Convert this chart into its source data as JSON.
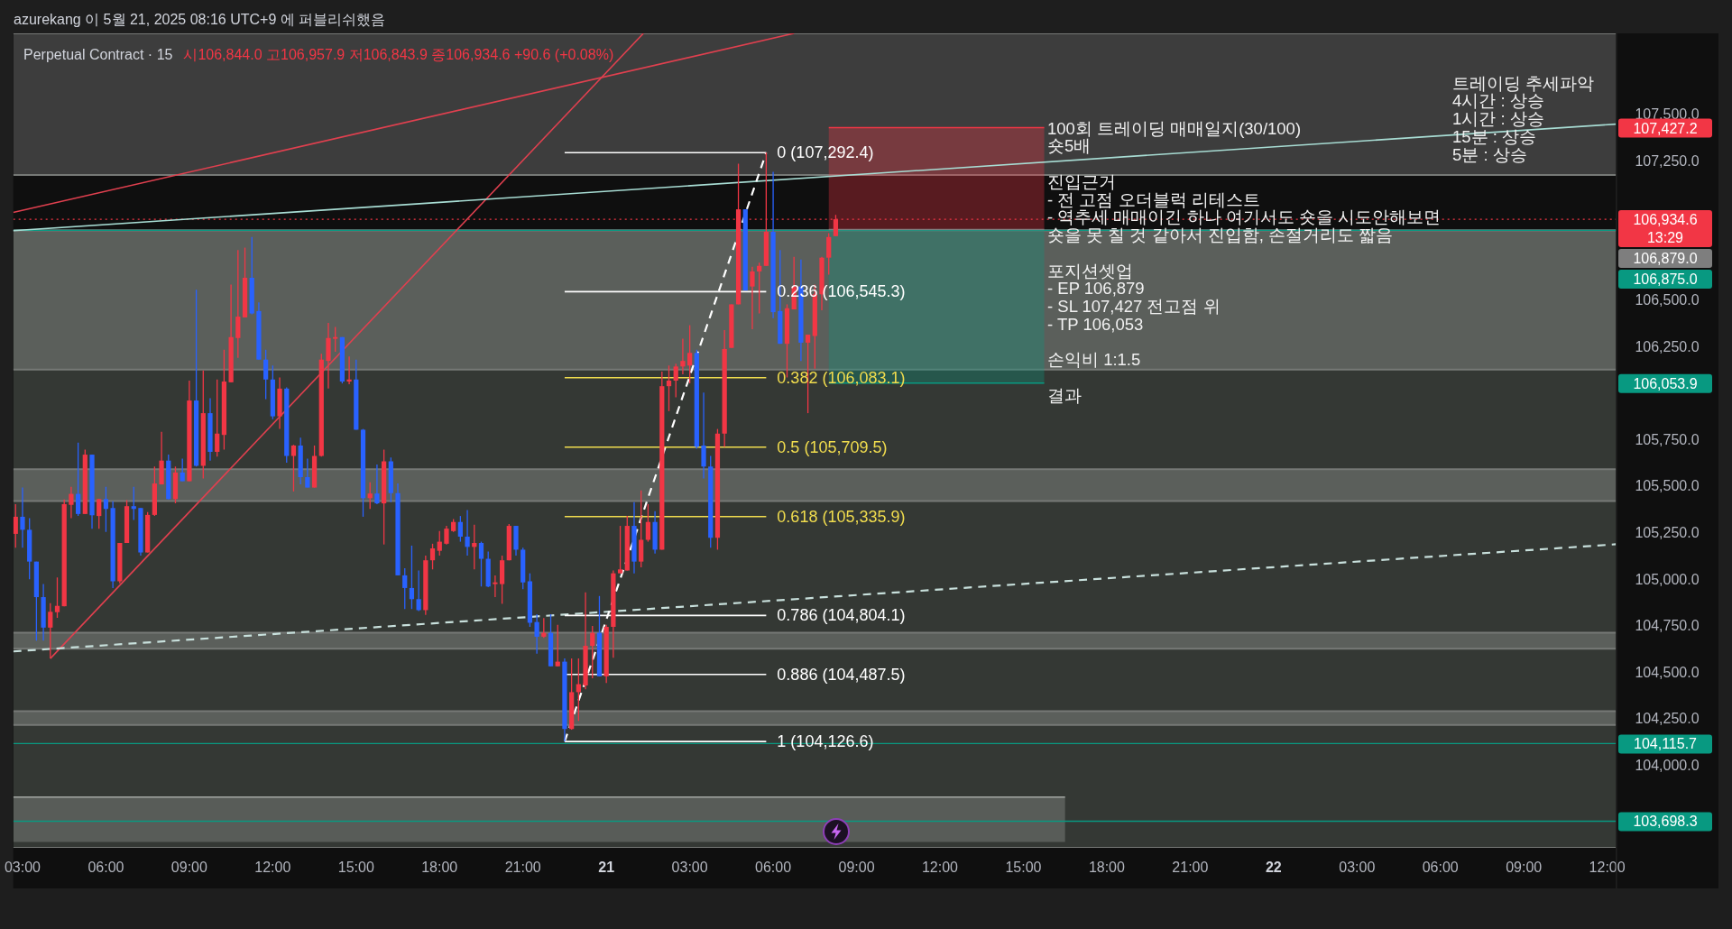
{
  "chart_data": {
    "type": "candlestick",
    "title": "Perpetual Contract · 15",
    "subtitle": "시106,844.0 고106,957.9 저106,843.9 종106,934.6 +90.6 (+0.08%)",
    "annotations": [
      "azurekang 이 5월 21, 2025 08:16 UTC+9 에 퍼블리쉬했음",
      "100회 트레이딩 매매일지(30/100)\n숏5배\n\n진입근거\n- 전 고점 오더블럭 리테스트\n- 역추세 매매이긴 하나 여기서도 숏을 시도안해보면\n숏을 못 칠 것 같아서 진입함, 손절거리도 짧음\n\n포지션셋업\n- EP 106,879\n- SL 107,427 전고점 위\n- TP 106,053\n\n손익비 1:1.5\n\n결과",
      "트레이딩 추세파악\n4시간 : 상승\n1시간 : 상승\n15분 : 상승\n5분 : 상승",
      "107,427.2",
      "106,879.0",
      "106,875.0",
      "106,053.9"
    ],
    "x": [
      "2025-05-20T02:45",
      "2025-05-20T03:00",
      "2025-05-20T03:15",
      "2025-05-20T03:30",
      "2025-05-20T03:45",
      "2025-05-20T04:00",
      "2025-05-20T04:15",
      "2025-05-20T04:30",
      "2025-05-20T04:45",
      "2025-05-20T05:00",
      "2025-05-20T05:15",
      "2025-05-20T05:30",
      "2025-05-20T05:45",
      "2025-05-20T06:00",
      "2025-05-20T06:15",
      "2025-05-20T06:30",
      "2025-05-20T06:45",
      "2025-05-20T07:00",
      "2025-05-20T07:15",
      "2025-05-20T07:30",
      "2025-05-20T07:45",
      "2025-05-20T08:00",
      "2025-05-20T08:15",
      "2025-05-20T08:30",
      "2025-05-20T08:45",
      "2025-05-20T09:00",
      "2025-05-20T09:15",
      "2025-05-20T09:30",
      "2025-05-20T09:45",
      "2025-05-20T10:00",
      "2025-05-20T10:15",
      "2025-05-20T10:30",
      "2025-05-20T10:45",
      "2025-05-20T11:00",
      "2025-05-20T11:15",
      "2025-05-20T11:30",
      "2025-05-20T11:45",
      "2025-05-20T12:00",
      "2025-05-20T12:15",
      "2025-05-20T12:30",
      "2025-05-20T12:45",
      "2025-05-20T13:00",
      "2025-05-20T13:15",
      "2025-05-20T13:30",
      "2025-05-20T13:45",
      "2025-05-20T14:00",
      "2025-05-20T14:15",
      "2025-05-20T14:30",
      "2025-05-20T14:45",
      "2025-05-20T15:00",
      "2025-05-20T15:15",
      "2025-05-20T15:30",
      "2025-05-20T15:45",
      "2025-05-20T16:00",
      "2025-05-20T16:15",
      "2025-05-20T16:30",
      "2025-05-20T16:45",
      "2025-05-20T17:00",
      "2025-05-20T17:15",
      "2025-05-20T17:30",
      "2025-05-20T17:45",
      "2025-05-20T18:00",
      "2025-05-20T18:15",
      "2025-05-20T18:30",
      "2025-05-20T18:45",
      "2025-05-20T19:00",
      "2025-05-20T19:15",
      "2025-05-20T19:30",
      "2025-05-20T19:45",
      "2025-05-20T20:00",
      "2025-05-20T20:15",
      "2025-05-20T20:30",
      "2025-05-20T20:45",
      "2025-05-20T21:00",
      "2025-05-20T21:15",
      "2025-05-20T21:30",
      "2025-05-20T21:45",
      "2025-05-20T22:00",
      "2025-05-20T22:15",
      "2025-05-20T22:30",
      "2025-05-20T22:45",
      "2025-05-20T23:00",
      "2025-05-20T23:15",
      "2025-05-20T23:30",
      "2025-05-20T23:45",
      "2025-05-21T00:00",
      "2025-05-21T00:15",
      "2025-05-21T00:30",
      "2025-05-21T00:45",
      "2025-05-21T01:00",
      "2025-05-21T01:15",
      "2025-05-21T01:30",
      "2025-05-21T01:45",
      "2025-05-21T02:00",
      "2025-05-21T02:15",
      "2025-05-21T02:30",
      "2025-05-21T02:45",
      "2025-05-21T03:00",
      "2025-05-21T03:15",
      "2025-05-21T03:30",
      "2025-05-21T03:45",
      "2025-05-21T04:00",
      "2025-05-21T04:15",
      "2025-05-21T04:30",
      "2025-05-21T04:45",
      "2025-05-21T05:00",
      "2025-05-21T05:15",
      "2025-05-21T05:30",
      "2025-05-21T05:45",
      "2025-05-21T06:00",
      "2025-05-21T06:15",
      "2025-05-21T06:30",
      "2025-05-21T06:45",
      "2025-05-21T07:00",
      "2025-05-21T07:15",
      "2025-05-21T07:30",
      "2025-05-21T07:45",
      "2025-05-21T08:00",
      "2025-05-21T08:15"
    ],
    "ohlc": [
      [
        105243,
        105403,
        105169,
        105335
      ],
      [
        105335,
        105492,
        105169,
        105265
      ],
      [
        105265,
        105328,
        104999,
        105094
      ],
      [
        105094,
        105094,
        104669,
        104903
      ],
      [
        104903,
        104973,
        104669,
        104739
      ],
      [
        104739,
        104871,
        104573,
        104824
      ],
      [
        104822,
        105009,
        104792,
        104856
      ],
      [
        104854,
        105428,
        104854,
        105403
      ],
      [
        105399,
        105496,
        105328,
        105458
      ],
      [
        105458,
        105733,
        105339,
        105350
      ],
      [
        105350,
        105696,
        105350,
        105669
      ],
      [
        105669,
        105669,
        105271,
        105343
      ],
      [
        105339,
        105430,
        105271,
        105430
      ],
      [
        105430,
        105496,
        105254,
        105377
      ],
      [
        105382,
        105418,
        104952,
        104988
      ],
      [
        104988,
        105194,
        104977,
        105194
      ],
      [
        105194,
        105424,
        105194,
        105392
      ],
      [
        105392,
        105496,
        105318,
        105377
      ],
      [
        105382,
        105382,
        105126,
        105143
      ],
      [
        105143,
        105360,
        105143,
        105345
      ],
      [
        105345,
        105605,
        105339,
        105514
      ],
      [
        105509,
        105792,
        105509,
        105637
      ],
      [
        105637,
        105669,
        105428,
        105430
      ],
      [
        105430,
        105605,
        105407,
        105573
      ],
      [
        105573,
        105648,
        105526,
        105526
      ],
      [
        105526,
        106067,
        105526,
        105960
      ],
      [
        105960,
        106556,
        105605,
        105609
      ],
      [
        105609,
        106122,
        105541,
        105892
      ],
      [
        105892,
        105973,
        105637,
        105684
      ],
      [
        105684,
        106073,
        105658,
        105782
      ],
      [
        105775,
        106233,
        105696,
        106062
      ],
      [
        106058,
        106584,
        106058,
        106301
      ],
      [
        106296,
        106769,
        106190,
        106411
      ],
      [
        106407,
        106782,
        106407,
        106620
      ],
      [
        106620,
        106839,
        106424,
        106428
      ],
      [
        106441,
        106488,
        106180,
        106180
      ],
      [
        106180,
        106233,
        105967,
        106073
      ],
      [
        106073,
        106148,
        105860,
        105875
      ],
      [
        105875,
        106084,
        105807,
        106024
      ],
      [
        106024,
        106031,
        105626,
        105662
      ],
      [
        105662,
        105722,
        105471,
        105718
      ],
      [
        105718,
        105760,
        105509,
        105548
      ],
      [
        105548,
        105648,
        105492,
        105492
      ],
      [
        105492,
        105718,
        105492,
        105662
      ],
      [
        105662,
        106211,
        105658,
        106180
      ],
      [
        106173,
        106377,
        106024,
        106296
      ],
      [
        106292,
        106356,
        106222,
        106301
      ],
      [
        106301,
        106301,
        106052,
        106062
      ],
      [
        106062,
        106197,
        106048,
        106073
      ],
      [
        106073,
        106180,
        105803,
        105803
      ],
      [
        105803,
        105807,
        105335,
        105435
      ],
      [
        105435,
        105520,
        105377,
        105460
      ],
      [
        105460,
        105616,
        105403,
        105407
      ],
      [
        105407,
        105696,
        105186,
        105633
      ],
      [
        105633,
        105654,
        105414,
        105462
      ],
      [
        105462,
        105514,
        105020,
        105020
      ],
      [
        105020,
        105058,
        104839,
        104952
      ],
      [
        104952,
        105180,
        104839,
        104892
      ],
      [
        104892,
        105046,
        104828,
        104833
      ],
      [
        104833,
        105126,
        104807,
        105101
      ],
      [
        105101,
        105190,
        105052,
        105165
      ],
      [
        105152,
        105258,
        105126,
        105201
      ],
      [
        105190,
        105286,
        105186,
        105271
      ],
      [
        105258,
        105322,
        105254,
        105307
      ],
      [
        105307,
        105339,
        105201,
        105228
      ],
      [
        105228,
        105371,
        105126,
        105173
      ],
      [
        105173,
        105292,
        105052,
        105194
      ],
      [
        105194,
        105201,
        104960,
        105109
      ],
      [
        105109,
        105148,
        104956,
        104960
      ],
      [
        104973,
        105020,
        104903,
        104982
      ],
      [
        104973,
        105126,
        104867,
        105101
      ],
      [
        105101,
        105296,
        105101,
        105286
      ],
      [
        105286,
        105286,
        105126,
        105158
      ],
      [
        105158,
        105169,
        104945,
        104982
      ],
      [
        104988,
        105031,
        104743,
        104765
      ],
      [
        104769,
        104811,
        104599,
        104690
      ],
      [
        104690,
        104790,
        104684,
        104711
      ],
      [
        104711,
        104811,
        104531,
        104531
      ],
      [
        104531,
        104754,
        104531,
        104556
      ],
      [
        104556,
        104573,
        104127,
        104194
      ],
      [
        104194,
        104573,
        104190,
        104392
      ],
      [
        104392,
        104573,
        104237,
        104435
      ],
      [
        104428,
        104928,
        104407,
        104641
      ],
      [
        104641,
        104748,
        104467,
        104711
      ],
      [
        104711,
        104909,
        104477,
        104477
      ],
      [
        104477,
        104754,
        104441,
        104743
      ],
      [
        104743,
        105046,
        104577,
        105031
      ],
      [
        105031,
        105286,
        105031,
        105052
      ],
      [
        105046,
        105339,
        105046,
        105286
      ],
      [
        105286,
        105414,
        105031,
        105094
      ],
      [
        105094,
        105477,
        105063,
        105211
      ],
      [
        105211,
        105403,
        105201,
        105307
      ],
      [
        105307,
        105365,
        105137,
        105158
      ],
      [
        105158,
        106116,
        105158,
        106037
      ],
      [
        106037,
        106148,
        105903,
        106067
      ],
      [
        106067,
        106158,
        105977,
        106143
      ],
      [
        106143,
        106292,
        106101,
        106173
      ],
      [
        106148,
        106365,
        106052,
        106216
      ],
      [
        106216,
        106233,
        105701,
        105711
      ],
      [
        105718,
        106003,
        105541,
        105605
      ],
      [
        105605,
        105662,
        105169,
        105222
      ],
      [
        105222,
        105807,
        105158,
        105782
      ],
      [
        105782,
        106339,
        105711,
        106237
      ],
      [
        106243,
        106477,
        106243,
        106477
      ],
      [
        106477,
        107233,
        106477,
        106988
      ],
      [
        106988,
        106988,
        106552,
        106552
      ],
      [
        106573,
        106679,
        106343,
        106654
      ],
      [
        106654,
        106701,
        106428,
        106684
      ],
      [
        106684,
        107292.4,
        106684,
        106867
      ],
      [
        106867,
        107190,
        106403,
        106435
      ],
      [
        106441,
        106769,
        106265,
        106265
      ],
      [
        106265,
        106477,
        106084,
        106456
      ],
      [
        106450,
        106733,
        106450,
        106573
      ],
      [
        106573,
        106718,
        106173,
        106271
      ],
      [
        106271,
        106314,
        105892,
        106314
      ],
      [
        106307,
        106584,
        106131,
        106531
      ],
      [
        106531,
        106733,
        106445,
        106728
      ],
      [
        106728,
        106860,
        106637,
        106839
      ],
      [
        106844.0,
        106957.9,
        106843.9,
        106934.6
      ]
    ],
    "colors": [
      "#f23645",
      "#2962ff",
      "#2962ff",
      "#2962ff",
      "#2962ff",
      "#f23645",
      "#f23645",
      "#f23645",
      "#f23645",
      "#2962ff",
      "#f23645",
      "#2962ff",
      "#f23645",
      "#2962ff",
      "#2962ff",
      "#f23645",
      "#f23645",
      "#2962ff",
      "#2962ff",
      "#f23645",
      "#f23645",
      "#f23645",
      "#2962ff",
      "#f23645",
      "#2962ff",
      "#f23645",
      "#2962ff",
      "#f23645",
      "#2962ff",
      "#f23645",
      "#f23645",
      "#f23645",
      "#f23645",
      "#f23645",
      "#2962ff",
      "#2962ff",
      "#2962ff",
      "#2962ff",
      "#f23645",
      "#2962ff",
      "#f23645",
      "#2962ff",
      "#2962ff",
      "#f23645",
      "#f23645",
      "#f23645",
      "#f23645",
      "#2962ff",
      "#f23645",
      "#2962ff",
      "#2962ff",
      "#f23645",
      "#2962ff",
      "#f23645",
      "#2962ff",
      "#2962ff",
      "#2962ff",
      "#2962ff",
      "#2962ff",
      "#f23645",
      "#f23645",
      "#f23645",
      "#f23645",
      "#f23645",
      "#2962ff",
      "#2962ff",
      "#f23645",
      "#2962ff",
      "#2962ff",
      "#f23645",
      "#f23645",
      "#f23645",
      "#2962ff",
      "#2962ff",
      "#2962ff",
      "#2962ff",
      "#f23645",
      "#2962ff",
      "#f23645",
      "#2962ff",
      "#f23645",
      "#f23645",
      "#f23645",
      "#f23645",
      "#2962ff",
      "#f23645",
      "#f23645",
      "#f23645",
      "#f23645",
      "#2962ff",
      "#f23645",
      "#f23645",
      "#2962ff",
      "#f23645",
      "#f23645",
      "#f23645",
      "#f23645",
      "#f23645",
      "#2962ff",
      "#2962ff",
      "#2962ff",
      "#f23645",
      "#f23645",
      "#f23645",
      "#f23645",
      "#2962ff",
      "#f23645",
      "#f23645",
      "#f23645",
      "#2962ff",
      "#2962ff",
      "#f23645",
      "#f23645",
      "#2962ff",
      "#f23645",
      "#f23645",
      "#f23645",
      "#f23645",
      "#f23645"
    ],
    "xlim": [
      "2025-05-20T02:40",
      "2025-05-22T12:19"
    ],
    "xticks": [
      {
        "value": "2025-05-20T03:00",
        "label": "03:00"
      },
      {
        "value": "2025-05-20T06:00",
        "label": "06:00"
      },
      {
        "value": "2025-05-20T09:00",
        "label": "09:00"
      },
      {
        "value": "2025-05-20T12:00",
        "label": "12:00"
      },
      {
        "value": "2025-05-20T15:00",
        "label": "15:00"
      },
      {
        "value": "2025-05-20T18:00",
        "label": "18:00"
      },
      {
        "value": "2025-05-20T21:00",
        "label": "21:00"
      },
      {
        "value": "2025-05-21T00:00",
        "label": "21"
      },
      {
        "value": "2025-05-21T03:00",
        "label": "03:00"
      },
      {
        "value": "2025-05-21T06:00",
        "label": "06:00"
      },
      {
        "value": "2025-05-21T09:00",
        "label": "09:00"
      },
      {
        "value": "2025-05-21T12:00",
        "label": "12:00"
      },
      {
        "value": "2025-05-21T15:00",
        "label": "15:00"
      },
      {
        "value": "2025-05-21T18:00",
        "label": "18:00"
      },
      {
        "value": "2025-05-21T21:00",
        "label": "21:00"
      },
      {
        "value": "2025-05-22T00:00",
        "label": "22"
      },
      {
        "value": "2025-05-22T03:00",
        "label": "03:00"
      },
      {
        "value": "2025-05-22T06:00",
        "label": "06:00"
      },
      {
        "value": "2025-05-22T09:00",
        "label": "09:00"
      },
      {
        "value": "2025-05-22T12:00",
        "label": "12:00"
      }
    ],
    "ylim": [
      103555,
      107934
    ],
    "yticks": [
      {
        "value": 104000,
        "label": "104,000.0"
      },
      {
        "value": 104250,
        "label": "104,250.0"
      },
      {
        "value": 104500,
        "label": "104,500.0"
      },
      {
        "value": 104750,
        "label": "104,750.0"
      },
      {
        "value": 105000,
        "label": "105,000.0"
      },
      {
        "value": 105250,
        "label": "105,250.0"
      },
      {
        "value": 105500,
        "label": "105,500.0"
      },
      {
        "value": 105750,
        "label": "105,750.0"
      },
      {
        "value": 106250,
        "label": "106,250.0"
      },
      {
        "value": 106500,
        "label": "106,500.0"
      },
      {
        "value": 107250,
        "label": "107,250.0"
      },
      {
        "value": 107500,
        "label": "107,500.0"
      }
    ],
    "bands": [
      {
        "axis": "y",
        "from": 103555,
        "to": 106875,
        "color": "#343834"
      },
      {
        "axis": "y",
        "from": 107173,
        "to": 107934,
        "color": "#3d3d3d"
      },
      {
        "axis": "y",
        "from": 106126,
        "to": 106875,
        "color": "#5b5f5b"
      },
      {
        "axis": "y",
        "from": 105420,
        "to": 105590,
        "color": "#5b5f5b"
      },
      {
        "axis": "y",
        "from": 104626,
        "to": 104711,
        "color": "#5b5f5b"
      },
      {
        "axis": "y",
        "from": 104216,
        "to": 104290,
        "color": "#5b5f5b"
      }
    ],
    "ref_lines": [
      {
        "axis": "y",
        "value": 106934.6,
        "label": "106,934.6\n13:29",
        "color": "#f23645",
        "line_style": "dotted"
      },
      {
        "axis": "y",
        "value": 106875.0,
        "color": "#089981",
        "line_style": "solid"
      },
      {
        "axis": "y",
        "value": 104115.7,
        "label": "104,115.7",
        "color": "#089981",
        "line_style": "solid"
      },
      {
        "axis": "y",
        "value": 103698.3,
        "label": "103,698.3",
        "color": "#089981",
        "line_style": "solid"
      }
    ],
    "series": [
      {
        "type": "line",
        "x": [
          "2025-05-20T02:40",
          "2025-05-21T16:30"
        ],
        "values": [
          103828,
          103828
        ],
        "lower": [
          103586,
          103586
        ],
        "upper": [
          103828,
          103828
        ],
        "color": "#a4a8a4"
      },
      {
        "type": "line",
        "x": [
          "2025-05-21T08:00",
          "2025-05-21T15:45"
        ],
        "values": [
          107427.2,
          107427.2
        ],
        "lower": [
          106879,
          106879
        ],
        "upper": [
          107427.2,
          107427.2
        ],
        "color": "#f23645"
      },
      {
        "type": "line",
        "x": [
          "2025-05-21T08:00",
          "2025-05-21T15:45"
        ],
        "values": [
          106053.9,
          106053.9
        ],
        "lower": [
          106053.9,
          106053.9
        ],
        "upper": [
          106879,
          106879
        ],
        "color": "#089981"
      },
      {
        "type": "line",
        "x": [
          "2025-05-21T08:00",
          "2025-05-21T15:45"
        ],
        "values": [
          106879,
          106879
        ],
        "color": "#7e7e7e"
      },
      {
        "type": "line",
        "x": [
          "2025-05-20T02:40",
          "2025-05-21T06:45"
        ],
        "values": [
          106971,
          107934
        ],
        "color": "#e0404f"
      },
      {
        "type": "line",
        "x": [
          "2025-05-20T04:00",
          "2025-05-21T01:20"
        ],
        "values": [
          104573,
          107934
        ],
        "color": "#e0404f"
      },
      {
        "type": "line",
        "x": [
          "2025-05-20T02:40",
          "2025-05-22T12:19"
        ],
        "values": [
          106873,
          107446
        ],
        "color": "#a8ddd4"
      },
      {
        "type": "line",
        "x": [
          "2025-05-20T02:40",
          "2025-05-22T12:19"
        ],
        "values": [
          104611,
          105187
        ],
        "color": "#c8e0dc",
        "line_style": "dashed"
      },
      {
        "type": "line",
        "x": [
          "2025-05-20T22:30",
          "2025-05-21T05:45"
        ],
        "values": [
          104126.6,
          107292.4
        ],
        "color": "#ffffff",
        "line_style": "dashed"
      },
      {
        "type": "line",
        "name": "0 (107,292.4)",
        "x": [
          "2025-05-20T22:30",
          "2025-05-21T05:45"
        ],
        "values": [
          107292.4,
          107292.4
        ],
        "color": "#ffffff"
      },
      {
        "type": "line",
        "name": "0.236 (106,545.3)",
        "x": [
          "2025-05-20T22:30",
          "2025-05-21T05:45"
        ],
        "values": [
          106545.3,
          106545.3
        ],
        "color": "#ffffff"
      },
      {
        "type": "line",
        "name": "0.382 (106,083.1)",
        "x": [
          "2025-05-20T22:30",
          "2025-05-21T05:45"
        ],
        "values": [
          106083.1,
          106083.1
        ],
        "color": "#f0dc4e"
      },
      {
        "type": "line",
        "name": "0.5 (105,709.5)",
        "x": [
          "2025-05-20T22:30",
          "2025-05-21T05:45"
        ],
        "values": [
          105709.5,
          105709.5
        ],
        "color": "#f0dc4e"
      },
      {
        "type": "line",
        "name": "0.618 (105,335.9)",
        "x": [
          "2025-05-20T22:30",
          "2025-05-21T05:45"
        ],
        "values": [
          105335.9,
          105335.9
        ],
        "color": "#f0dc4e"
      },
      {
        "type": "line",
        "name": "0.786 (104,804.1)",
        "x": [
          "2025-05-20T22:30",
          "2025-05-21T05:45"
        ],
        "values": [
          104804.1,
          104804.1
        ],
        "color": "#ffffff"
      },
      {
        "type": "line",
        "name": "0.886 (104,487.5)",
        "x": [
          "2025-05-20T22:30",
          "2025-05-21T05:45"
        ],
        "values": [
          104487.5,
          104487.5
        ],
        "color": "#ffffff"
      },
      {
        "type": "line",
        "name": "1 (104,126.6)",
        "x": [
          "2025-05-20T22:30",
          "2025-05-21T05:45"
        ],
        "values": [
          104126.6,
          104126.6
        ],
        "color": "#ffffff"
      }
    ]
  }
}
